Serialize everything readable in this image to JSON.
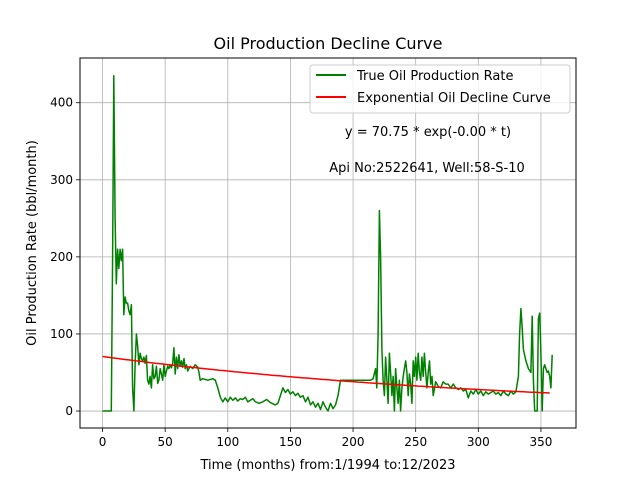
{
  "chart_data": {
    "type": "line",
    "title": "Oil Production Decline Curve",
    "xlabel": "Time (months) from:1/1994 to:12/2023",
    "ylabel": "Oil Production Rate (bbl/month)",
    "xlim": [
      -18,
      378
    ],
    "ylim": [
      -22,
      458
    ],
    "xticks": [
      0,
      50,
      100,
      150,
      200,
      250,
      300,
      350
    ],
    "yticks": [
      0,
      100,
      200,
      300,
      400
    ],
    "grid": true,
    "legend_position": "top-right",
    "annotations": [
      "y = 70.75 * exp(-0.00 * t)",
      "Api No:2522641, Well:58-S-10"
    ],
    "series": [
      {
        "name": "True Oil Production Rate",
        "color": "#008000",
        "points": [
          [
            0,
            0
          ],
          [
            4,
            0
          ],
          [
            7,
            0
          ],
          [
            8,
            200
          ],
          [
            9,
            435
          ],
          [
            10,
            250
          ],
          [
            11,
            165
          ],
          [
            12,
            210
          ],
          [
            13,
            185
          ],
          [
            14,
            210
          ],
          [
            15,
            195
          ],
          [
            16,
            210
          ],
          [
            17,
            125
          ],
          [
            18,
            148
          ],
          [
            19,
            140
          ],
          [
            20,
            140
          ],
          [
            21,
            130
          ],
          [
            22,
            125
          ],
          [
            23,
            138
          ],
          [
            24,
            30
          ],
          [
            25,
            0
          ],
          [
            26,
            60
          ],
          [
            27,
            100
          ],
          [
            28,
            85
          ],
          [
            29,
            60
          ],
          [
            30,
            75
          ],
          [
            31,
            68
          ],
          [
            32,
            65
          ],
          [
            33,
            70
          ],
          [
            34,
            62
          ],
          [
            35,
            72
          ],
          [
            36,
            40
          ],
          [
            37,
            35
          ],
          [
            38,
            45
          ],
          [
            39,
            30
          ],
          [
            40,
            60
          ],
          [
            41,
            42
          ],
          [
            42,
            45
          ],
          [
            43,
            58
          ],
          [
            44,
            36
          ],
          [
            45,
            40
          ],
          [
            46,
            55
          ],
          [
            47,
            48
          ],
          [
            48,
            40
          ],
          [
            49,
            60
          ],
          [
            50,
            45
          ],
          [
            51,
            52
          ],
          [
            52,
            58
          ],
          [
            53,
            55
          ],
          [
            54,
            60
          ],
          [
            55,
            56
          ],
          [
            56,
            62
          ],
          [
            57,
            82
          ],
          [
            58,
            48
          ],
          [
            59,
            70
          ],
          [
            60,
            55
          ],
          [
            61,
            73
          ],
          [
            62,
            58
          ],
          [
            63,
            65
          ],
          [
            64,
            57
          ],
          [
            65,
            68
          ],
          [
            66,
            55
          ],
          [
            67,
            60
          ],
          [
            68,
            52
          ],
          [
            70,
            58
          ],
          [
            72,
            55
          ],
          [
            74,
            60
          ],
          [
            76,
            57
          ],
          [
            77,
            50
          ],
          [
            78,
            40
          ],
          [
            80,
            42
          ],
          [
            84,
            40
          ],
          [
            88,
            42
          ],
          [
            90,
            40
          ],
          [
            92,
            30
          ],
          [
            94,
            18
          ],
          [
            96,
            12
          ],
          [
            98,
            17
          ],
          [
            100,
            12
          ],
          [
            102,
            18
          ],
          [
            104,
            14
          ],
          [
            106,
            17
          ],
          [
            108,
            13
          ],
          [
            110,
            16
          ],
          [
            112,
            15
          ],
          [
            114,
            18
          ],
          [
            116,
            12
          ],
          [
            118,
            14
          ],
          [
            120,
            16
          ],
          [
            122,
            12
          ],
          [
            125,
            10
          ],
          [
            128,
            12
          ],
          [
            131,
            15
          ],
          [
            134,
            11
          ],
          [
            138,
            8
          ],
          [
            140,
            10
          ],
          [
            142,
            20
          ],
          [
            144,
            30
          ],
          [
            146,
            24
          ],
          [
            148,
            28
          ],
          [
            150,
            22
          ],
          [
            152,
            25
          ],
          [
            154,
            20
          ],
          [
            156,
            23
          ],
          [
            158,
            18
          ],
          [
            160,
            20
          ],
          [
            162,
            12
          ],
          [
            164,
            18
          ],
          [
            166,
            8
          ],
          [
            168,
            12
          ],
          [
            170,
            5
          ],
          [
            172,
            10
          ],
          [
            174,
            2
          ],
          [
            176,
            12
          ],
          [
            178,
            5
          ],
          [
            180,
            0
          ],
          [
            182,
            10
          ],
          [
            184,
            3
          ],
          [
            186,
            8
          ],
          [
            188,
            20
          ],
          [
            190,
            40
          ],
          [
            194,
            40
          ],
          [
            198,
            40
          ],
          [
            202,
            40
          ],
          [
            206,
            40
          ],
          [
            210,
            40
          ],
          [
            214,
            40
          ],
          [
            216,
            42
          ],
          [
            218,
            55
          ],
          [
            219,
            30
          ],
          [
            220,
            100
          ],
          [
            221,
            260
          ],
          [
            222,
            200
          ],
          [
            223,
            80
          ],
          [
            224,
            40
          ],
          [
            225,
            20
          ],
          [
            226,
            70
          ],
          [
            227,
            40
          ],
          [
            228,
            10
          ],
          [
            229,
            75
          ],
          [
            230,
            50
          ],
          [
            231,
            20
          ],
          [
            232,
            45
          ],
          [
            233,
            0
          ],
          [
            234,
            55
          ],
          [
            235,
            30
          ],
          [
            236,
            10
          ],
          [
            237,
            40
          ],
          [
            238,
            0
          ],
          [
            239,
            30
          ],
          [
            240,
            45
          ],
          [
            241,
            55
          ],
          [
            242,
            65
          ],
          [
            243,
            50
          ],
          [
            244,
            20
          ],
          [
            245,
            48
          ],
          [
            246,
            35
          ],
          [
            247,
            10
          ],
          [
            248,
            65
          ],
          [
            249,
            45
          ],
          [
            250,
            70
          ],
          [
            251,
            40
          ],
          [
            252,
            75
          ],
          [
            253,
            50
          ],
          [
            254,
            40
          ],
          [
            255,
            70
          ],
          [
            256,
            45
          ],
          [
            257,
            75
          ],
          [
            258,
            50
          ],
          [
            259,
            30
          ],
          [
            260,
            50
          ],
          [
            261,
            65
          ],
          [
            262,
            35
          ],
          [
            263,
            45
          ],
          [
            264,
            20
          ],
          [
            266,
            38
          ],
          [
            268,
            32
          ],
          [
            270,
            30
          ],
          [
            272,
            38
          ],
          [
            274,
            35
          ],
          [
            276,
            35
          ],
          [
            278,
            30
          ],
          [
            280,
            35
          ],
          [
            282,
            30
          ],
          [
            284,
            28
          ],
          [
            286,
            30
          ],
          [
            288,
            26
          ],
          [
            290,
            28
          ],
          [
            292,
            17
          ],
          [
            294,
            26
          ],
          [
            296,
            22
          ],
          [
            298,
            28
          ],
          [
            300,
            22
          ],
          [
            302,
            26
          ],
          [
            304,
            20
          ],
          [
            306,
            25
          ],
          [
            308,
            22
          ],
          [
            310,
            24
          ],
          [
            312,
            26
          ],
          [
            314,
            22
          ],
          [
            316,
            24
          ],
          [
            318,
            20
          ],
          [
            320,
            26
          ],
          [
            322,
            22
          ],
          [
            324,
            20
          ],
          [
            326,
            26
          ],
          [
            328,
            22
          ],
          [
            330,
            25
          ],
          [
            332,
            45
          ],
          [
            333,
            100
          ],
          [
            334,
            133
          ],
          [
            335,
            110
          ],
          [
            336,
            80
          ],
          [
            338,
            65
          ],
          [
            340,
            55
          ],
          [
            342,
            50
          ],
          [
            343,
            123
          ],
          [
            344,
            40
          ],
          [
            345,
            0
          ],
          [
            346,
            0
          ],
          [
            347,
            0
          ],
          [
            348,
            120
          ],
          [
            349,
            127
          ],
          [
            350,
            75
          ],
          [
            351,
            0
          ],
          [
            352,
            55
          ],
          [
            353,
            60
          ],
          [
            354,
            55
          ],
          [
            355,
            50
          ],
          [
            356,
            52
          ],
          [
            357,
            45
          ],
          [
            358,
            30
          ],
          [
            359,
            73
          ]
        ]
      },
      {
        "name": "Exponential Oil Decline Curve",
        "color": "#ff0000",
        "a": 70.75,
        "b": 0.0031,
        "x_range": [
          0,
          359
        ]
      }
    ]
  }
}
